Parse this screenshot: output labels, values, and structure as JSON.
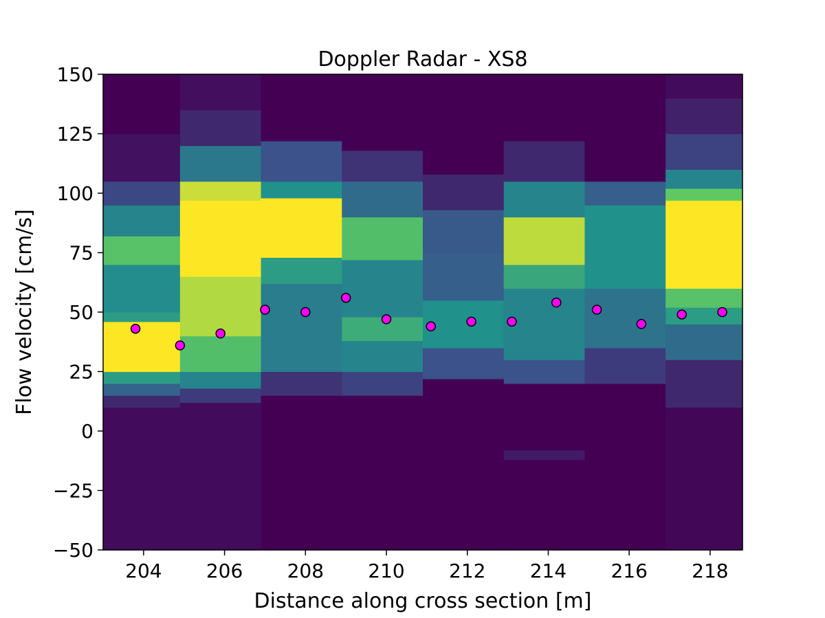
{
  "chart_data": {
    "type": "heatmap",
    "title": "Doppler Radar - XS8",
    "xlabel": "Distance along cross section [m]",
    "ylabel": "Flow velocity [cm/s]",
    "xlim": [
      203.0,
      218.8
    ],
    "ylim": [
      -50,
      150
    ],
    "xticks": [
      204,
      206,
      208,
      210,
      212,
      214,
      216,
      218
    ],
    "xtick_labels": [
      "204",
      "206",
      "208",
      "210",
      "212",
      "214",
      "216",
      "218"
    ],
    "yticks": [
      -50,
      -25,
      0,
      25,
      50,
      75,
      100,
      125,
      150
    ],
    "ytick_labels": [
      "−50",
      "−25",
      "0",
      "25",
      "50",
      "75",
      "100",
      "125",
      "150"
    ],
    "grid": false,
    "colormap": "viridis",
    "colors": {
      "low": "#440154",
      "mid": "#21918c",
      "high": "#fde725",
      "marker": "#ff00ff",
      "marker_edge": "#000000"
    },
    "columns": [
      {
        "x_start": 203.0,
        "x_end": 204.9,
        "bands": [
          {
            "from": -50,
            "to": 10,
            "level": 0.03
          },
          {
            "from": 10,
            "to": 15,
            "level": 0.12
          },
          {
            "from": 15,
            "to": 20,
            "level": 0.32
          },
          {
            "from": 20,
            "to": 25,
            "level": 0.55
          },
          {
            "from": 25,
            "to": 46,
            "level": 1.0
          },
          {
            "from": 46,
            "to": 50,
            "level": 0.55
          },
          {
            "from": 50,
            "to": 70,
            "level": 0.48
          },
          {
            "from": 70,
            "to": 82,
            "level": 0.72
          },
          {
            "from": 82,
            "to": 95,
            "level": 0.45
          },
          {
            "from": 95,
            "to": 105,
            "level": 0.22
          },
          {
            "from": 105,
            "to": 125,
            "level": 0.05
          },
          {
            "from": 125,
            "to": 150,
            "level": 0.0
          }
        ]
      },
      {
        "x_start": 204.9,
        "x_end": 206.9,
        "bands": [
          {
            "from": -50,
            "to": 12,
            "level": 0.03
          },
          {
            "from": 12,
            "to": 18,
            "level": 0.18
          },
          {
            "from": 18,
            "to": 25,
            "level": 0.45
          },
          {
            "from": 25,
            "to": 40,
            "level": 0.7
          },
          {
            "from": 40,
            "to": 65,
            "level": 0.88
          },
          {
            "from": 65,
            "to": 97,
            "level": 1.0
          },
          {
            "from": 97,
            "to": 105,
            "level": 0.92
          },
          {
            "from": 105,
            "to": 120,
            "level": 0.4
          },
          {
            "from": 120,
            "to": 135,
            "level": 0.12
          },
          {
            "from": 135,
            "to": 150,
            "level": 0.04
          }
        ]
      },
      {
        "x_start": 206.9,
        "x_end": 208.9,
        "bands": [
          {
            "from": -50,
            "to": 15,
            "level": 0.0
          },
          {
            "from": 15,
            "to": 25,
            "level": 0.15
          },
          {
            "from": 25,
            "to": 62,
            "level": 0.42
          },
          {
            "from": 62,
            "to": 73,
            "level": 0.55
          },
          {
            "from": 73,
            "to": 98,
            "level": 1.0
          },
          {
            "from": 98,
            "to": 105,
            "level": 0.5
          },
          {
            "from": 105,
            "to": 122,
            "level": 0.25
          },
          {
            "from": 122,
            "to": 150,
            "level": 0.0
          }
        ]
      },
      {
        "x_start": 208.9,
        "x_end": 210.9,
        "bands": [
          {
            "from": -50,
            "to": 15,
            "level": 0.0
          },
          {
            "from": 15,
            "to": 25,
            "level": 0.2
          },
          {
            "from": 25,
            "to": 38,
            "level": 0.45
          },
          {
            "from": 38,
            "to": 48,
            "level": 0.62
          },
          {
            "from": 48,
            "to": 72,
            "level": 0.45
          },
          {
            "from": 72,
            "to": 90,
            "level": 0.7
          },
          {
            "from": 90,
            "to": 105,
            "level": 0.35
          },
          {
            "from": 105,
            "to": 118,
            "level": 0.15
          },
          {
            "from": 118,
            "to": 150,
            "level": 0.0
          }
        ]
      },
      {
        "x_start": 210.9,
        "x_end": 212.9,
        "bands": [
          {
            "from": -50,
            "to": 22,
            "level": 0.0
          },
          {
            "from": 22,
            "to": 35,
            "level": 0.25
          },
          {
            "from": 35,
            "to": 55,
            "level": 0.5
          },
          {
            "from": 55,
            "to": 75,
            "level": 0.3
          },
          {
            "from": 75,
            "to": 93,
            "level": 0.28
          },
          {
            "from": 93,
            "to": 108,
            "level": 0.12
          },
          {
            "from": 108,
            "to": 150,
            "level": 0.0
          }
        ]
      },
      {
        "x_start": 212.9,
        "x_end": 214.9,
        "bands": [
          {
            "from": -50,
            "to": -12,
            "level": 0.0
          },
          {
            "from": -12,
            "to": -8,
            "level": 0.08
          },
          {
            "from": -8,
            "to": 20,
            "level": 0.0
          },
          {
            "from": 20,
            "to": 30,
            "level": 0.25
          },
          {
            "from": 30,
            "to": 60,
            "level": 0.45
          },
          {
            "from": 60,
            "to": 70,
            "level": 0.6
          },
          {
            "from": 70,
            "to": 90,
            "level": 0.9
          },
          {
            "from": 90,
            "to": 105,
            "level": 0.45
          },
          {
            "from": 105,
            "to": 122,
            "level": 0.12
          },
          {
            "from": 122,
            "to": 150,
            "level": 0.0
          }
        ]
      },
      {
        "x_start": 214.9,
        "x_end": 216.9,
        "bands": [
          {
            "from": -50,
            "to": 20,
            "level": 0.0
          },
          {
            "from": 20,
            "to": 35,
            "level": 0.18
          },
          {
            "from": 35,
            "to": 60,
            "level": 0.38
          },
          {
            "from": 60,
            "to": 95,
            "level": 0.5
          },
          {
            "from": 95,
            "to": 105,
            "level": 0.3
          },
          {
            "from": 105,
            "to": 150,
            "level": 0.0
          }
        ]
      },
      {
        "x_start": 216.9,
        "x_end": 218.8,
        "bands": [
          {
            "from": -50,
            "to": 10,
            "level": 0.02
          },
          {
            "from": 10,
            "to": 30,
            "level": 0.12
          },
          {
            "from": 30,
            "to": 45,
            "level": 0.35
          },
          {
            "from": 45,
            "to": 52,
            "level": 0.55
          },
          {
            "from": 52,
            "to": 60,
            "level": 0.72
          },
          {
            "from": 60,
            "to": 97,
            "level": 1.0
          },
          {
            "from": 97,
            "to": 102,
            "level": 0.75
          },
          {
            "from": 102,
            "to": 110,
            "level": 0.45
          },
          {
            "from": 110,
            "to": 125,
            "level": 0.2
          },
          {
            "from": 125,
            "to": 140,
            "level": 0.1
          },
          {
            "from": 140,
            "to": 150,
            "level": 0.03
          }
        ]
      }
    ],
    "points": {
      "x": [
        203.8,
        204.9,
        205.9,
        207.0,
        208.0,
        209.0,
        210.0,
        211.1,
        212.1,
        213.1,
        214.2,
        215.2,
        216.3,
        217.3,
        218.3
      ],
      "y": [
        43,
        36,
        41,
        51,
        50,
        56,
        47,
        44,
        46,
        46,
        54,
        51,
        45,
        49,
        50
      ]
    }
  }
}
